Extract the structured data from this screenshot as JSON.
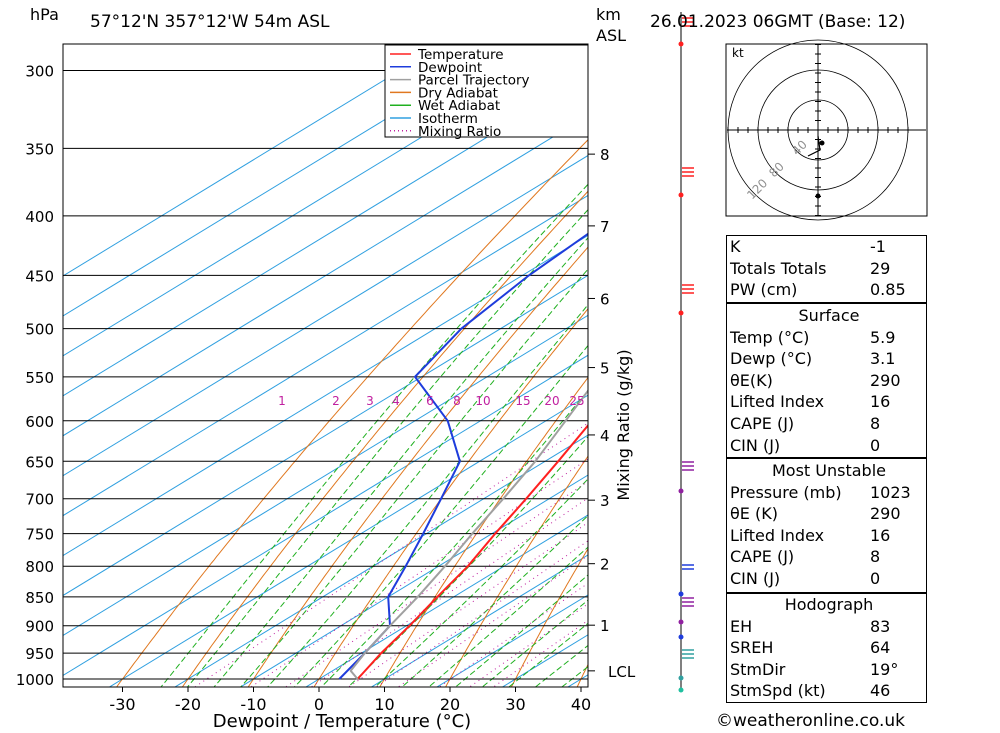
{
  "header": {
    "hpa_label": "hPa",
    "location": "57°12'N  357°12'W  54m  ASL",
    "km_label": "km",
    "asl_label": "ASL",
    "datetime": "26.01.2023  06GMT  (Base: 12)"
  },
  "legend": {
    "items": [
      {
        "label": "Temperature",
        "color": "#ff2020",
        "style": "solid"
      },
      {
        "label": "Dewpoint",
        "color": "#1e3cdc",
        "style": "solid"
      },
      {
        "label": "Parcel Trajectory",
        "color": "#a0a0a0",
        "style": "solid"
      },
      {
        "label": "Dry Adiabat",
        "color": "#e07820",
        "style": "solid"
      },
      {
        "label": "Wet Adiabat",
        "color": "#20b020",
        "style": "solid"
      },
      {
        "label": "Isotherm",
        "color": "#30a0e0",
        "style": "solid"
      },
      {
        "label": "Mixing Ratio",
        "color": "#c020a0",
        "style": "dotted"
      }
    ]
  },
  "chart_data": {
    "type": "line",
    "xlabel": "Dewpoint / Temperature (°C)",
    "ylabel": "hPa",
    "y2label": "Mixing Ratio (g/kg)",
    "pressure_ticks": [
      300,
      350,
      400,
      450,
      500,
      550,
      600,
      650,
      700,
      750,
      800,
      850,
      900,
      950,
      1000
    ],
    "temp_ticks": [
      -30,
      -20,
      -10,
      0,
      10,
      20,
      30,
      40
    ],
    "km_ticks": [
      {
        "label": "8",
        "p": 354
      },
      {
        "label": "7",
        "p": 408
      },
      {
        "label": "6",
        "p": 471
      },
      {
        "label": "5",
        "p": 540
      },
      {
        "label": "4",
        "p": 617
      },
      {
        "label": "3",
        "p": 702
      },
      {
        "label": "2",
        "p": 796
      },
      {
        "label": "1",
        "p": 899
      },
      {
        "label": "LCL",
        "p": 984
      }
    ],
    "mixing_ratio_labels": [
      "1",
      "2",
      "3",
      "4",
      "6",
      "8",
      "10",
      "15",
      "20",
      "25"
    ],
    "series": [
      {
        "name": "Temperature",
        "color": "#ff2020",
        "points": [
          {
            "p": 1000,
            "t": 5.9
          },
          {
            "p": 950,
            "t": 3.0
          },
          {
            "p": 900,
            "t": 0.5
          },
          {
            "p": 850,
            "t": -2.5
          },
          {
            "p": 800,
            "t": -5.5
          },
          {
            "p": 750,
            "t": -9.5
          },
          {
            "p": 700,
            "t": -13.5
          },
          {
            "p": 650,
            "t": -18.0
          },
          {
            "p": 600,
            "t": -23.0
          },
          {
            "p": 550,
            "t": -28.5
          },
          {
            "p": 500,
            "t": -30.0
          },
          {
            "p": 450,
            "t": -36.0
          },
          {
            "p": 400,
            "t": -46.5
          },
          {
            "p": 350,
            "t": -56.5
          },
          {
            "p": 300,
            "t": -67.0
          }
        ]
      },
      {
        "name": "Dewpoint",
        "color": "#1e3cdc",
        "points": [
          {
            "p": 1000,
            "t": 3.1
          },
          {
            "p": 950,
            "t": 0.5
          },
          {
            "p": 900,
            "t": -2.5
          },
          {
            "p": 850,
            "t": -10.0
          },
          {
            "p": 800,
            "t": -15.0
          },
          {
            "p": 750,
            "t": -20.5
          },
          {
            "p": 700,
            "t": -26.5
          },
          {
            "p": 650,
            "t": -33.0
          },
          {
            "p": 600,
            "t": -45.0
          },
          {
            "p": 550,
            "t": -61.0
          },
          {
            "p": 500,
            "t": -66.0
          },
          {
            "p": 450,
            "t": -69.0
          },
          {
            "p": 400,
            "t": -71.0
          },
          {
            "p": 350,
            "t": -76.0
          },
          {
            "p": 300,
            "t": -81.0
          }
        ]
      },
      {
        "name": "Parcel Trajectory",
        "color": "#a0a0a0",
        "points": [
          {
            "p": 1000,
            "t": 5.9
          },
          {
            "p": 984,
            "t": 2.8
          },
          {
            "p": 950,
            "t": 0.5
          },
          {
            "p": 900,
            "t": -2.5
          },
          {
            "p": 850,
            "t": -5.5
          },
          {
            "p": 800,
            "t": -9.0
          },
          {
            "p": 750,
            "t": -13.0
          },
          {
            "p": 700,
            "t": -17.0
          },
          {
            "p": 650,
            "t": -21.5
          },
          {
            "p": 600,
            "t": -27.0
          },
          {
            "p": 550,
            "t": -33.0
          },
          {
            "p": 500,
            "t": -40.0
          },
          {
            "p": 450,
            "t": -47.5
          },
          {
            "p": 400,
            "t": -56.0
          },
          {
            "p": 350,
            "t": -65.5
          },
          {
            "p": 300,
            "t": -76.0
          }
        ]
      }
    ],
    "grid": true
  },
  "hodograph": {
    "unit_label": "kt",
    "ring_labels": [
      "40",
      "80",
      "120"
    ]
  },
  "indices": {
    "top": [
      {
        "key": "K",
        "value": "-1"
      },
      {
        "key": "Totals Totals",
        "value": "29"
      },
      {
        "key": "PW (cm)",
        "value": "0.85"
      }
    ],
    "surface": {
      "title": "Surface",
      "rows": [
        {
          "key": "Temp (°C)",
          "value": "5.9"
        },
        {
          "key": "Dewp (°C)",
          "value": "3.1"
        },
        {
          "key": "θE(K)",
          "value": "290"
        },
        {
          "key": "Lifted Index",
          "value": "16"
        },
        {
          "key": "CAPE (J)",
          "value": "8"
        },
        {
          "key": "CIN (J)",
          "value": "0"
        }
      ]
    },
    "most_unstable": {
      "title": "Most Unstable",
      "rows": [
        {
          "key": "Pressure (mb)",
          "value": "1023"
        },
        {
          "key": "θE (K)",
          "value": "290"
        },
        {
          "key": "Lifted Index",
          "value": "16"
        },
        {
          "key": "CAPE (J)",
          "value": "8"
        },
        {
          "key": "CIN (J)",
          "value": "0"
        }
      ]
    },
    "hodograph_params": {
      "title": "Hodograph",
      "rows": [
        {
          "key": "EH",
          "value": "83"
        },
        {
          "key": "SREH",
          "value": "64"
        },
        {
          "key": "StmDir",
          "value": "19°"
        },
        {
          "key": "StmSpd (kt)",
          "value": "46"
        }
      ]
    }
  },
  "credit": "©weatheronline.co.uk"
}
